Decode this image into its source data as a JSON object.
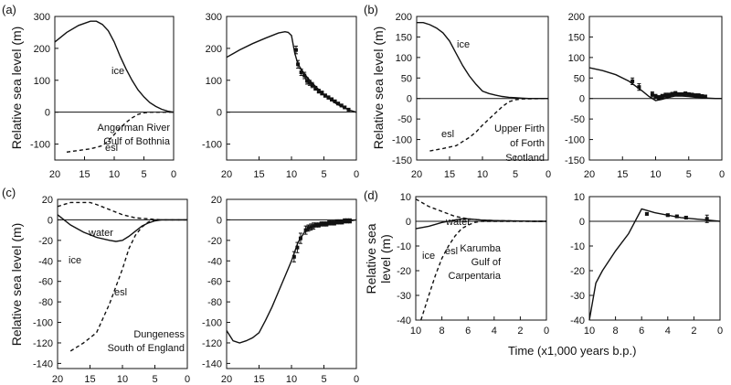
{
  "figure": {
    "panel_labels": [
      "(a)",
      "(b)",
      "(c)",
      "(d)"
    ],
    "ylabel_a": "Relative sea level (m)",
    "ylabel_b": "Relative sea level (m)",
    "ylabel_c": "Relative sea level (m)",
    "ylabel_d": "Relative sea\nlevel (m)",
    "xlabel": "Time (x1,000 years b.p.)"
  },
  "chart_data": [
    {
      "id": "a1",
      "type": "line",
      "xlim": [
        20,
        0
      ],
      "ylim": [
        -150,
        300
      ],
      "yticks": [
        300,
        200,
        100,
        0,
        -100
      ],
      "xticks": [
        20,
        15,
        10,
        5,
        0
      ],
      "zero_line": true,
      "annotations": [
        "Angerman River",
        "Gulf of Bothnia"
      ],
      "series": [
        {
          "name": "ice",
          "style": "solid",
          "x": [
            20,
            18,
            16,
            14,
            13,
            12,
            11,
            10,
            9,
            8,
            7,
            6,
            5,
            4,
            3,
            2,
            1,
            0
          ],
          "y": [
            220,
            250,
            272,
            285,
            285,
            275,
            255,
            220,
            175,
            135,
            100,
            70,
            48,
            30,
            18,
            9,
            3,
            0
          ]
        },
        {
          "name": "esl",
          "style": "dashed",
          "x": [
            18,
            16,
            14,
            12,
            11,
            10,
            9,
            8,
            7,
            6,
            5,
            4,
            0
          ],
          "y": [
            -125,
            -120,
            -115,
            -105,
            -90,
            -70,
            -50,
            -32,
            -18,
            -7,
            -2,
            0,
            0
          ]
        }
      ]
    },
    {
      "id": "a2",
      "type": "line",
      "xlim": [
        20,
        0
      ],
      "ylim": [
        -150,
        300
      ],
      "yticks": [
        300,
        200,
        100,
        0,
        -100
      ],
      "xticks": [
        20,
        15,
        10,
        5,
        0
      ],
      "zero_line": true,
      "series": [
        {
          "name": "",
          "style": "solid",
          "x": [
            20,
            18,
            16,
            14,
            12,
            11,
            10.5,
            10,
            9.5,
            9,
            8,
            7,
            6,
            5,
            4,
            3,
            2,
            1,
            0
          ],
          "y": [
            172,
            195,
            215,
            232,
            248,
            252,
            250,
            240,
            185,
            150,
            120,
            95,
            75,
            55,
            40,
            25,
            15,
            6,
            0
          ]
        },
        {
          "name": "",
          "style": "points",
          "x": [
            9.3,
            9.0,
            8.5,
            8.0,
            7.6,
            7.2,
            6.8,
            6.3,
            5.8,
            5.3,
            4.8,
            4.3,
            3.8,
            3.3,
            2.8,
            2.3,
            1.8,
            1.2
          ],
          "y": [
            195,
            150,
            125,
            115,
            98,
            92,
            85,
            75,
            66,
            60,
            52,
            46,
            40,
            34,
            27,
            21,
            15,
            8
          ],
          "err": [
            12,
            12,
            10,
            10,
            10,
            8,
            8,
            6,
            6,
            6,
            5,
            5,
            5,
            4,
            4,
            4,
            4,
            4
          ]
        }
      ]
    },
    {
      "id": "b1",
      "type": "line",
      "xlim": [
        20,
        0
      ],
      "ylim": [
        -150,
        200
      ],
      "yticks": [
        200,
        150,
        100,
        50,
        0,
        -50,
        -100,
        -150
      ],
      "xticks": [
        20,
        15,
        10,
        5,
        0
      ],
      "zero_line": true,
      "annotations": [
        "Upper Firth",
        "of Forth",
        "Scotland"
      ],
      "series": [
        {
          "name": "ice",
          "style": "solid",
          "x": [
            20,
            19,
            18,
            17,
            16,
            15,
            14,
            13,
            12,
            11,
            10,
            9,
            8,
            7,
            6,
            5,
            4,
            3,
            2,
            0
          ],
          "y": [
            185,
            185,
            180,
            172,
            160,
            140,
            110,
            80,
            55,
            35,
            18,
            12,
            8,
            5,
            3,
            2,
            1,
            0,
            0,
            0
          ]
        },
        {
          "name": "esl",
          "style": "dashed",
          "x": [
            18,
            16,
            14,
            12,
            11,
            10,
            9,
            8,
            7,
            6,
            5,
            4,
            0
          ],
          "y": [
            -128,
            -122,
            -115,
            -95,
            -82,
            -65,
            -50,
            -35,
            -20,
            -8,
            -3,
            -1,
            0
          ]
        }
      ]
    },
    {
      "id": "b2",
      "type": "line",
      "xlim": [
        20,
        0
      ],
      "ylim": [
        -150,
        200
      ],
      "yticks": [
        200,
        150,
        100,
        50,
        0,
        -50,
        -100,
        -150
      ],
      "xticks": [
        20,
        15,
        10,
        5,
        0
      ],
      "zero_line": true,
      "series": [
        {
          "name": "",
          "style": "solid",
          "x": [
            20,
            18,
            16,
            14,
            13,
            12,
            11,
            10,
            9,
            8,
            7,
            6,
            5,
            4,
            3,
            2,
            1,
            0
          ],
          "y": [
            75,
            68,
            58,
            42,
            30,
            18,
            5,
            -5,
            -2,
            3,
            6,
            6,
            5,
            3,
            2,
            1,
            0,
            0
          ]
        },
        {
          "name": "",
          "style": "points",
          "x": [
            13.5,
            12.5,
            10.5,
            10.0,
            9.5,
            9.0,
            8.5,
            8.0,
            7.5,
            7.0,
            6.5,
            6.0,
            5.5,
            5.0,
            4.5,
            4.0,
            3.5,
            3.0,
            2.5
          ],
          "y": [
            42,
            28,
            10,
            5,
            2,
            5,
            8,
            8,
            10,
            12,
            10,
            10,
            12,
            10,
            9,
            8,
            8,
            6,
            5
          ],
          "err": [
            8,
            8,
            6,
            5,
            5,
            5,
            5,
            5,
            5,
            5,
            4,
            4,
            4,
            4,
            4,
            3,
            3,
            3,
            3
          ]
        }
      ]
    },
    {
      "id": "c1",
      "type": "line",
      "xlim": [
        20,
        0
      ],
      "ylim": [
        -145,
        20
      ],
      "yticks": [
        20,
        0,
        -20,
        -40,
        -60,
        -80,
        -100,
        -120,
        -140
      ],
      "xticks": [
        20,
        15,
        10,
        5,
        0
      ],
      "zero_line": true,
      "annotations": [
        "Dungeness",
        "South of England"
      ],
      "series": [
        {
          "name": "water",
          "style": "dashed",
          "x": [
            20,
            18,
            16,
            15,
            14,
            12,
            10,
            8,
            6,
            4,
            2,
            0
          ],
          "y": [
            13,
            17,
            17,
            17,
            15,
            10,
            5,
            2,
            1,
            0,
            0,
            0
          ]
        },
        {
          "name": "ice",
          "style": "solid",
          "x": [
            20,
            19,
            18,
            16,
            14,
            12,
            11,
            10,
            9,
            8,
            7,
            6,
            5,
            4,
            2,
            0
          ],
          "y": [
            5,
            0,
            -5,
            -12,
            -17,
            -20,
            -21,
            -20,
            -16,
            -11,
            -6,
            -3,
            -1,
            0,
            0,
            0
          ]
        },
        {
          "name": "esl",
          "style": "dashed",
          "x": [
            18,
            16,
            15,
            14,
            12,
            11,
            10,
            9,
            8,
            7,
            6,
            5,
            4,
            2,
            0
          ],
          "y": [
            -128,
            -120,
            -115,
            -110,
            -82,
            -65,
            -48,
            -28,
            -15,
            -7,
            -2,
            0,
            0,
            0,
            0
          ]
        }
      ]
    },
    {
      "id": "c2",
      "type": "line",
      "xlim": [
        20,
        0
      ],
      "ylim": [
        -145,
        20
      ],
      "yticks": [
        20,
        0,
        -20,
        -40,
        -60,
        -80,
        -100,
        -120,
        -140
      ],
      "xticks": [
        20,
        15,
        10,
        5,
        0
      ],
      "zero_line": true,
      "series": [
        {
          "name": "",
          "style": "solid",
          "x": [
            20,
            19,
            18,
            17,
            16,
            15,
            14,
            13,
            12,
            11,
            10,
            9,
            8,
            7,
            6,
            5,
            4,
            3,
            2,
            1,
            0
          ],
          "y": [
            -108,
            -118,
            -120,
            -118,
            -115,
            -110,
            -98,
            -85,
            -70,
            -55,
            -40,
            -22,
            -12,
            -7,
            -5,
            -4,
            -3,
            -2,
            -1,
            -1,
            0
          ]
        },
        {
          "name": "",
          "style": "points",
          "x": [
            9.6,
            9.1,
            8.6,
            7.8,
            7.4,
            7.0,
            6.6,
            6.2,
            5.8,
            5.4,
            5.0,
            4.6,
            4.2,
            3.8,
            3.4,
            3.0,
            2.6,
            2.2,
            1.8,
            1.4,
            1.0
          ],
          "y": [
            -36,
            -27,
            -18,
            -10,
            -8,
            -7,
            -6,
            -5,
            -5,
            -4,
            -4,
            -4,
            -3,
            -3,
            -3,
            -2,
            -2,
            -2,
            -1,
            -1,
            -1
          ],
          "err": [
            5,
            5,
            5,
            4,
            3,
            3,
            3,
            2,
            2,
            2,
            2,
            2,
            2,
            2,
            2,
            2,
            2,
            2,
            2,
            2,
            2
          ]
        }
      ]
    },
    {
      "id": "d1",
      "type": "line",
      "xlim": [
        10,
        0
      ],
      "ylim": [
        -40,
        10
      ],
      "yticks": [
        10,
        0,
        -10,
        -20,
        -30,
        -40
      ],
      "xticks": [
        10,
        8,
        6,
        4,
        2,
        0
      ],
      "zero_line": true,
      "annotations": [
        "Karumba",
        "Gulf of",
        "Carpentaria"
      ],
      "series": [
        {
          "name": "water",
          "style": "dashed",
          "x": [
            10,
            9,
            8,
            7,
            6,
            5,
            4,
            3,
            2,
            1,
            0
          ],
          "y": [
            9,
            6,
            4,
            2,
            1,
            0.5,
            0.3,
            0.2,
            0.1,
            0,
            0
          ]
        },
        {
          "name": "ice",
          "style": "solid",
          "x": [
            10,
            9,
            8,
            7,
            6.5,
            6,
            5,
            4,
            3,
            2,
            1,
            0
          ],
          "y": [
            -3,
            -2,
            -0.5,
            0.5,
            1,
            1,
            0.5,
            0.3,
            0.2,
            0.1,
            0,
            0
          ]
        },
        {
          "name": "esl",
          "style": "dashed",
          "x": [
            9.6,
            9,
            8.5,
            8,
            7.5,
            7,
            6.5,
            6,
            5.5,
            5,
            4,
            2,
            0
          ],
          "y": [
            -40,
            -30,
            -22,
            -15,
            -10,
            -6,
            -3,
            -1.5,
            -0.5,
            0,
            0,
            0,
            0
          ]
        }
      ]
    },
    {
      "id": "d2",
      "type": "line",
      "xlim": [
        10,
        0
      ],
      "ylim": [
        -40,
        10
      ],
      "yticks": [
        10,
        0,
        -10,
        -20,
        -30,
        -40
      ],
      "xticks": [
        10,
        8,
        6,
        4,
        2,
        0
      ],
      "zero_line": true,
      "series": [
        {
          "name": "",
          "style": "solid",
          "x": [
            10,
            9.5,
            9,
            8,
            7,
            6,
            5,
            4,
            3,
            2,
            1,
            0
          ],
          "y": [
            -40,
            -25,
            -20,
            -12,
            -5,
            5,
            3.5,
            2.5,
            1.5,
            1,
            0.5,
            0
          ]
        },
        {
          "name": "",
          "style": "points",
          "x": [
            5.6,
            4.0,
            3.3,
            2.6,
            1.0
          ],
          "y": [
            3,
            2.5,
            2,
            1.5,
            1
          ],
          "err": [
            0.5,
            0.5,
            0.5,
            0.5,
            1.5
          ]
        }
      ]
    }
  ]
}
